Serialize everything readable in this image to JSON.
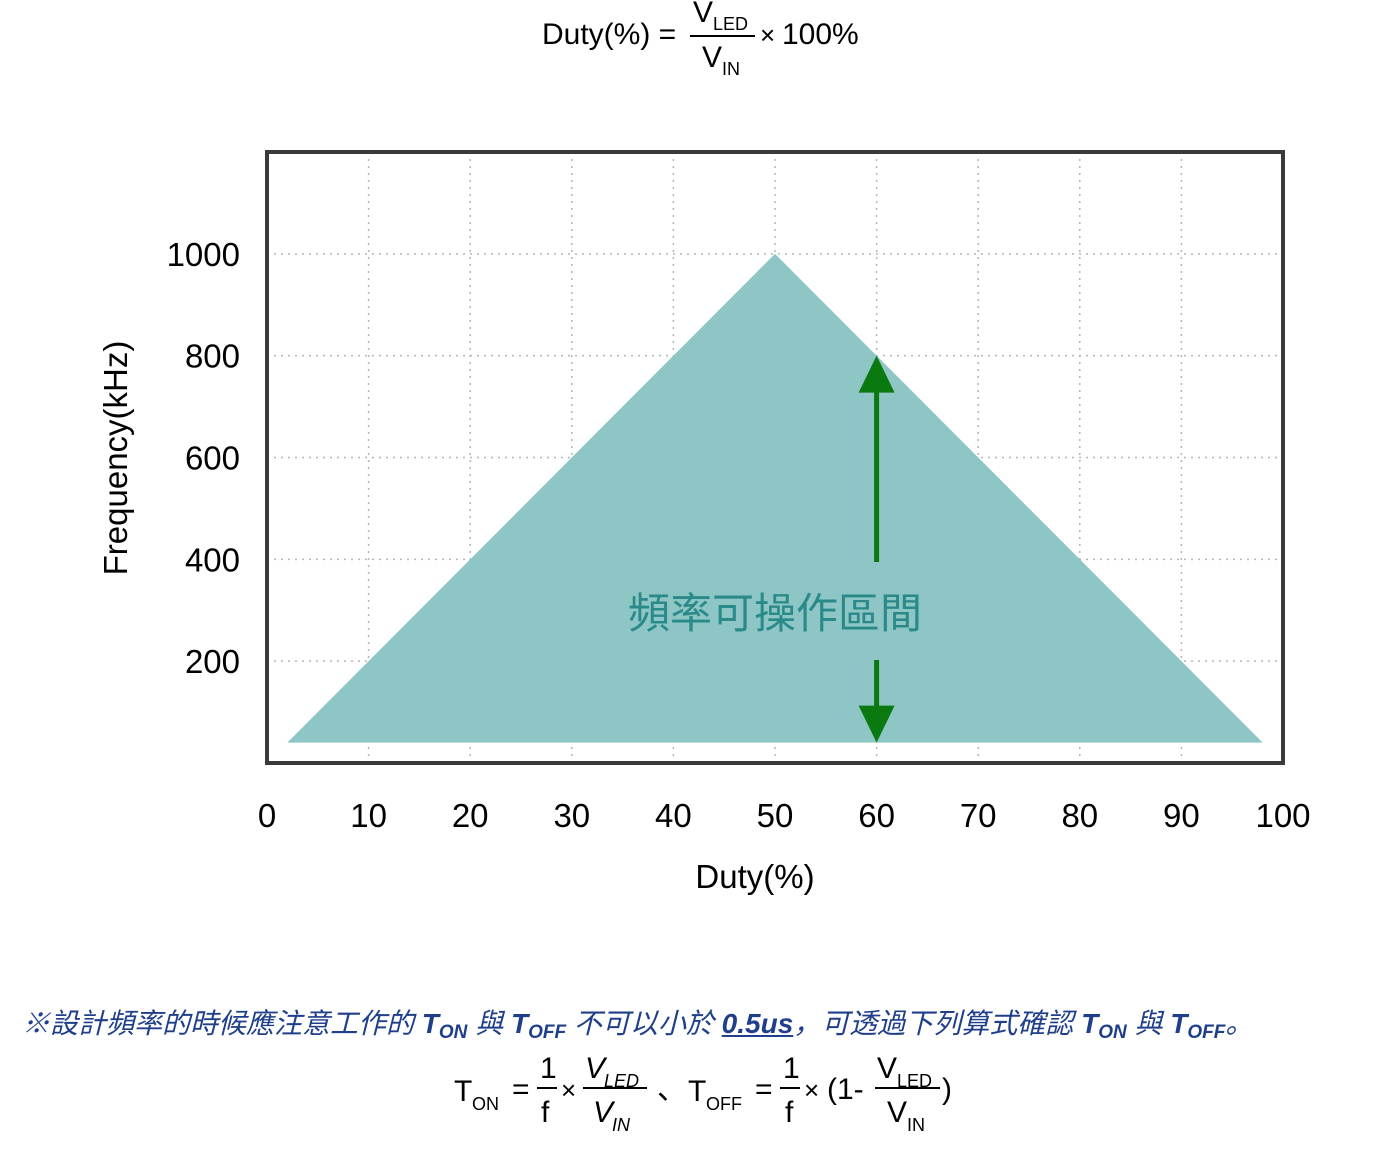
{
  "formula_duty": {
    "lhs": "Duty(%) =",
    "numerator_main": "V",
    "numerator_sub": "LED",
    "denominator_main": "V",
    "denominator_sub": "IN",
    "times": "×",
    "rhs": "100%"
  },
  "chart_data": {
    "type": "area",
    "xlabel": "Duty(%)",
    "ylabel": "Frequency(kHz)",
    "xlim": [
      0,
      100
    ],
    "ylim": [
      0,
      1200
    ],
    "x_ticks": [
      "0",
      "10",
      "20",
      "30",
      "40",
      "50",
      "60",
      "70",
      "80",
      "90",
      "100"
    ],
    "y_ticks": [
      "200",
      "400",
      "600",
      "800",
      "1000"
    ],
    "grid": true,
    "series": [
      {
        "x": [
          2,
          50,
          98
        ],
        "y": [
          40,
          1000,
          40
        ],
        "fill": "#8ec5c5"
      }
    ],
    "annotation": {
      "text": "頻率可操作區間",
      "text_color": "#2a8a8a",
      "arrow_color": "#0a7a10",
      "arrow_x": 60,
      "arrow_range": [
        40,
        800
      ]
    }
  },
  "note": {
    "prefix": "※設計頻率的時候應注意工作的",
    "t1": "T",
    "t1_sub": "ON",
    "and1": "與",
    "t2": "T",
    "t2_sub": "OFF",
    "mid": "不可以小於",
    "value": "0.5us",
    "suffix": "，可透過下列算式確認",
    "t3": "T",
    "t3_sub": "ON",
    "and2": "與",
    "t4": "T",
    "t4_sub": "OFF",
    "end": "。"
  },
  "formula_t": {
    "ton": "T",
    "ton_sub": "ON",
    "eq": "=",
    "one": "1",
    "f": "f",
    "times": "×",
    "vled_main": "V",
    "vled_sub": "LED",
    "vin_main": "V",
    "vin_sub": "IN",
    "sep": "、",
    "toff": "T",
    "toff_sub": "OFF",
    "open": "(1-",
    "close": ")"
  }
}
